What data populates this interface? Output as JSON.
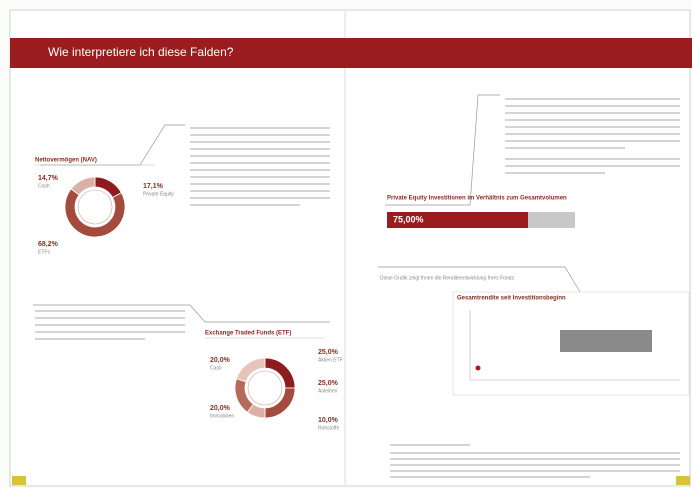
{
  "header": {
    "title": "Wie interpretiere ich diese Falden?"
  },
  "charts": [
    {
      "type": "donut",
      "title": "Nettovermögen (NAV)",
      "categories": [
        "Private Equity",
        "ETFs",
        "Cash"
      ],
      "values": [
        17.1,
        68.2,
        14.7
      ],
      "value_labels": [
        "17,1%",
        "68,2%",
        "14,7%"
      ],
      "colors": [
        "#8e1b1e",
        "#a44b3e",
        "#dcb1a5"
      ]
    },
    {
      "type": "donut",
      "title": "Exchange Traded Funds (ETF)",
      "categories": [
        "Aktien ETF",
        "Anleihen",
        "Rohstoffe",
        "Immobilien",
        "Cash"
      ],
      "values": [
        25,
        25,
        10,
        20,
        20
      ],
      "value_labels": [
        "25,0%",
        "25,0%",
        "10,0%",
        "20,0%",
        "20,0%"
      ],
      "colors": [
        "#8e1b1e",
        "#a44b3e",
        "#dcb1a5",
        "#b56a5c",
        "#e6c4ba"
      ]
    }
  ],
  "progress": {
    "title": "Private Equity Investitionen im Verhältnis zum Gesamtvolumen",
    "value": 75,
    "value_label": "75,00%",
    "xlim": [
      0,
      100
    ],
    "color": "#9b1c1f",
    "track_color": "#c8c8c8"
  },
  "line_chart": {
    "title": "Gesamtrendite seit Investitionsbeginn"
  },
  "caption": "Diese Grafik zeigt Ihnen die Renditeentwicklung Ihres Fonds"
}
